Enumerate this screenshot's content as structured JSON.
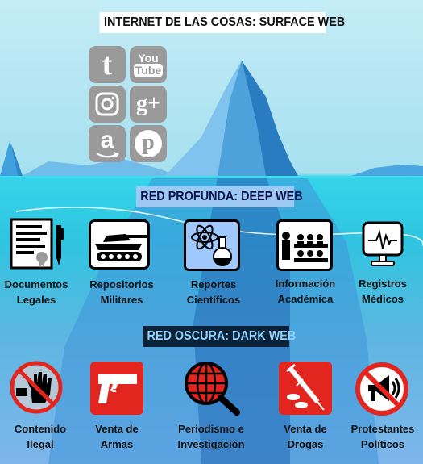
{
  "banners": {
    "surface": "INTERNET DE LAS COSAS: SURFACE WEB",
    "deep": "RED PROFUNDA: DEEP WEB",
    "dark": "RED OSCURA: DARK WEB"
  },
  "social_icons": [
    {
      "name": "tumblr-icon",
      "glyph": "t"
    },
    {
      "name": "youtube-icon",
      "line1": "You",
      "line2": "Tube"
    },
    {
      "name": "instagram-icon"
    },
    {
      "name": "google-plus-icon",
      "glyph": "g+"
    },
    {
      "name": "amazon-icon",
      "glyph": "a"
    },
    {
      "name": "pinterest-icon",
      "glyph": "p"
    }
  ],
  "deep_web": [
    {
      "label1": "Documentos",
      "label2": "Legales",
      "icon": "legal-document-icon"
    },
    {
      "label1": "Repositorios",
      "label2": "Militares",
      "icon": "tank-icon"
    },
    {
      "label1": "Reportes",
      "label2": "Científicos",
      "icon": "science-icon"
    },
    {
      "label1": "Información",
      "label2": "Académica",
      "icon": "classroom-icon"
    },
    {
      "label1": "Registros",
      "label2": "Médicos",
      "icon": "medical-monitor-icon"
    }
  ],
  "dark_web": [
    {
      "label1": "Contenido",
      "label2": "Ilegal",
      "icon": "stop-hand-icon"
    },
    {
      "label1": "Venta de",
      "label2": "Armas",
      "icon": "gun-icon"
    },
    {
      "label1": "Periodismo e",
      "label2": "Investigación",
      "icon": "globe-magnifier-icon"
    },
    {
      "label1": "Venta de",
      "label2": "Drogas",
      "icon": "syringe-pills-icon"
    },
    {
      "label1": "Protestantes",
      "label2": "Políticos",
      "icon": "no-megaphone-icon"
    }
  ],
  "colors": {
    "sky": "#c4ecf6",
    "water": "#2fc4e0",
    "iceberg": "#2f8fd0",
    "deep_banner": "#9ec9f3",
    "dark_banner": "#0b2238",
    "dark_text": "#8fd3ff",
    "social_grey": "#9a9a9a",
    "icon_red": "#e2251e"
  }
}
